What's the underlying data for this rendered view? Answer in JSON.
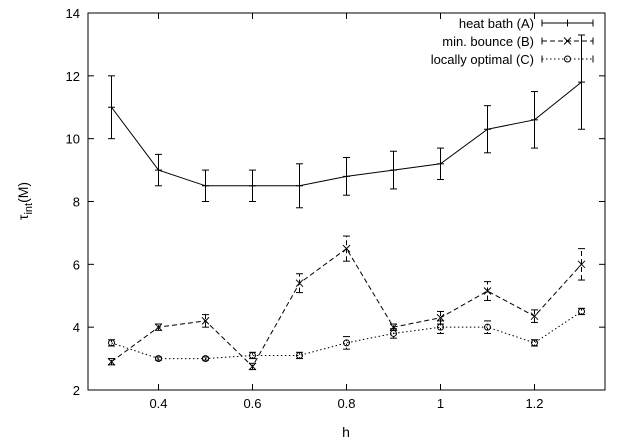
{
  "chart_data": {
    "type": "line",
    "xlabel": "h",
    "ylabel_main": "τ",
    "ylabel_sub": "int",
    "ylabel_suffix": "(M)",
    "xlim": [
      0.25,
      1.35
    ],
    "ylim": [
      2,
      14
    ],
    "xticks": [
      0.4,
      0.6,
      0.8,
      1,
      1.2
    ],
    "xtick_labels": [
      "0.4",
      "0.6",
      "0.8",
      "1",
      "1.2"
    ],
    "yticks": [
      2,
      4,
      6,
      8,
      10,
      12,
      14
    ],
    "ytick_labels": [
      "2",
      "4",
      "6",
      "8",
      "10",
      "12",
      "14"
    ],
    "grid": false,
    "legend_position": "top-right",
    "x": [
      0.3,
      0.4,
      0.5,
      0.6,
      0.7,
      0.8,
      0.9,
      1.0,
      1.1,
      1.2,
      1.3
    ],
    "series": [
      {
        "name": "heat bath (A)",
        "marker": "plus",
        "line_style": "solid",
        "y": [
          11.0,
          9.0,
          8.5,
          8.5,
          8.5,
          8.8,
          9.0,
          9.2,
          10.3,
          10.6,
          11.8
        ],
        "err": [
          1.0,
          0.5,
          0.5,
          0.5,
          0.7,
          0.6,
          0.6,
          0.5,
          0.75,
          0.9,
          1.5
        ]
      },
      {
        "name": "min. bounce (B)",
        "marker": "cross",
        "line_style": "dashed",
        "y": [
          2.9,
          4.0,
          4.2,
          2.75,
          5.4,
          6.5,
          4.0,
          4.3,
          5.15,
          4.35,
          6.0
        ],
        "err": [
          0.1,
          0.1,
          0.2,
          0.1,
          0.3,
          0.4,
          0.1,
          0.2,
          0.3,
          0.2,
          0.5
        ]
      },
      {
        "name": "locally optimal (C)",
        "marker": "circle",
        "line_style": "dotted",
        "y": [
          3.5,
          3.0,
          3.0,
          3.1,
          3.1,
          3.5,
          3.8,
          4.0,
          4.0,
          3.5,
          4.5
        ],
        "err": [
          0.1,
          0.05,
          0.05,
          0.1,
          0.1,
          0.2,
          0.15,
          0.2,
          0.2,
          0.1,
          0.1
        ]
      }
    ]
  }
}
